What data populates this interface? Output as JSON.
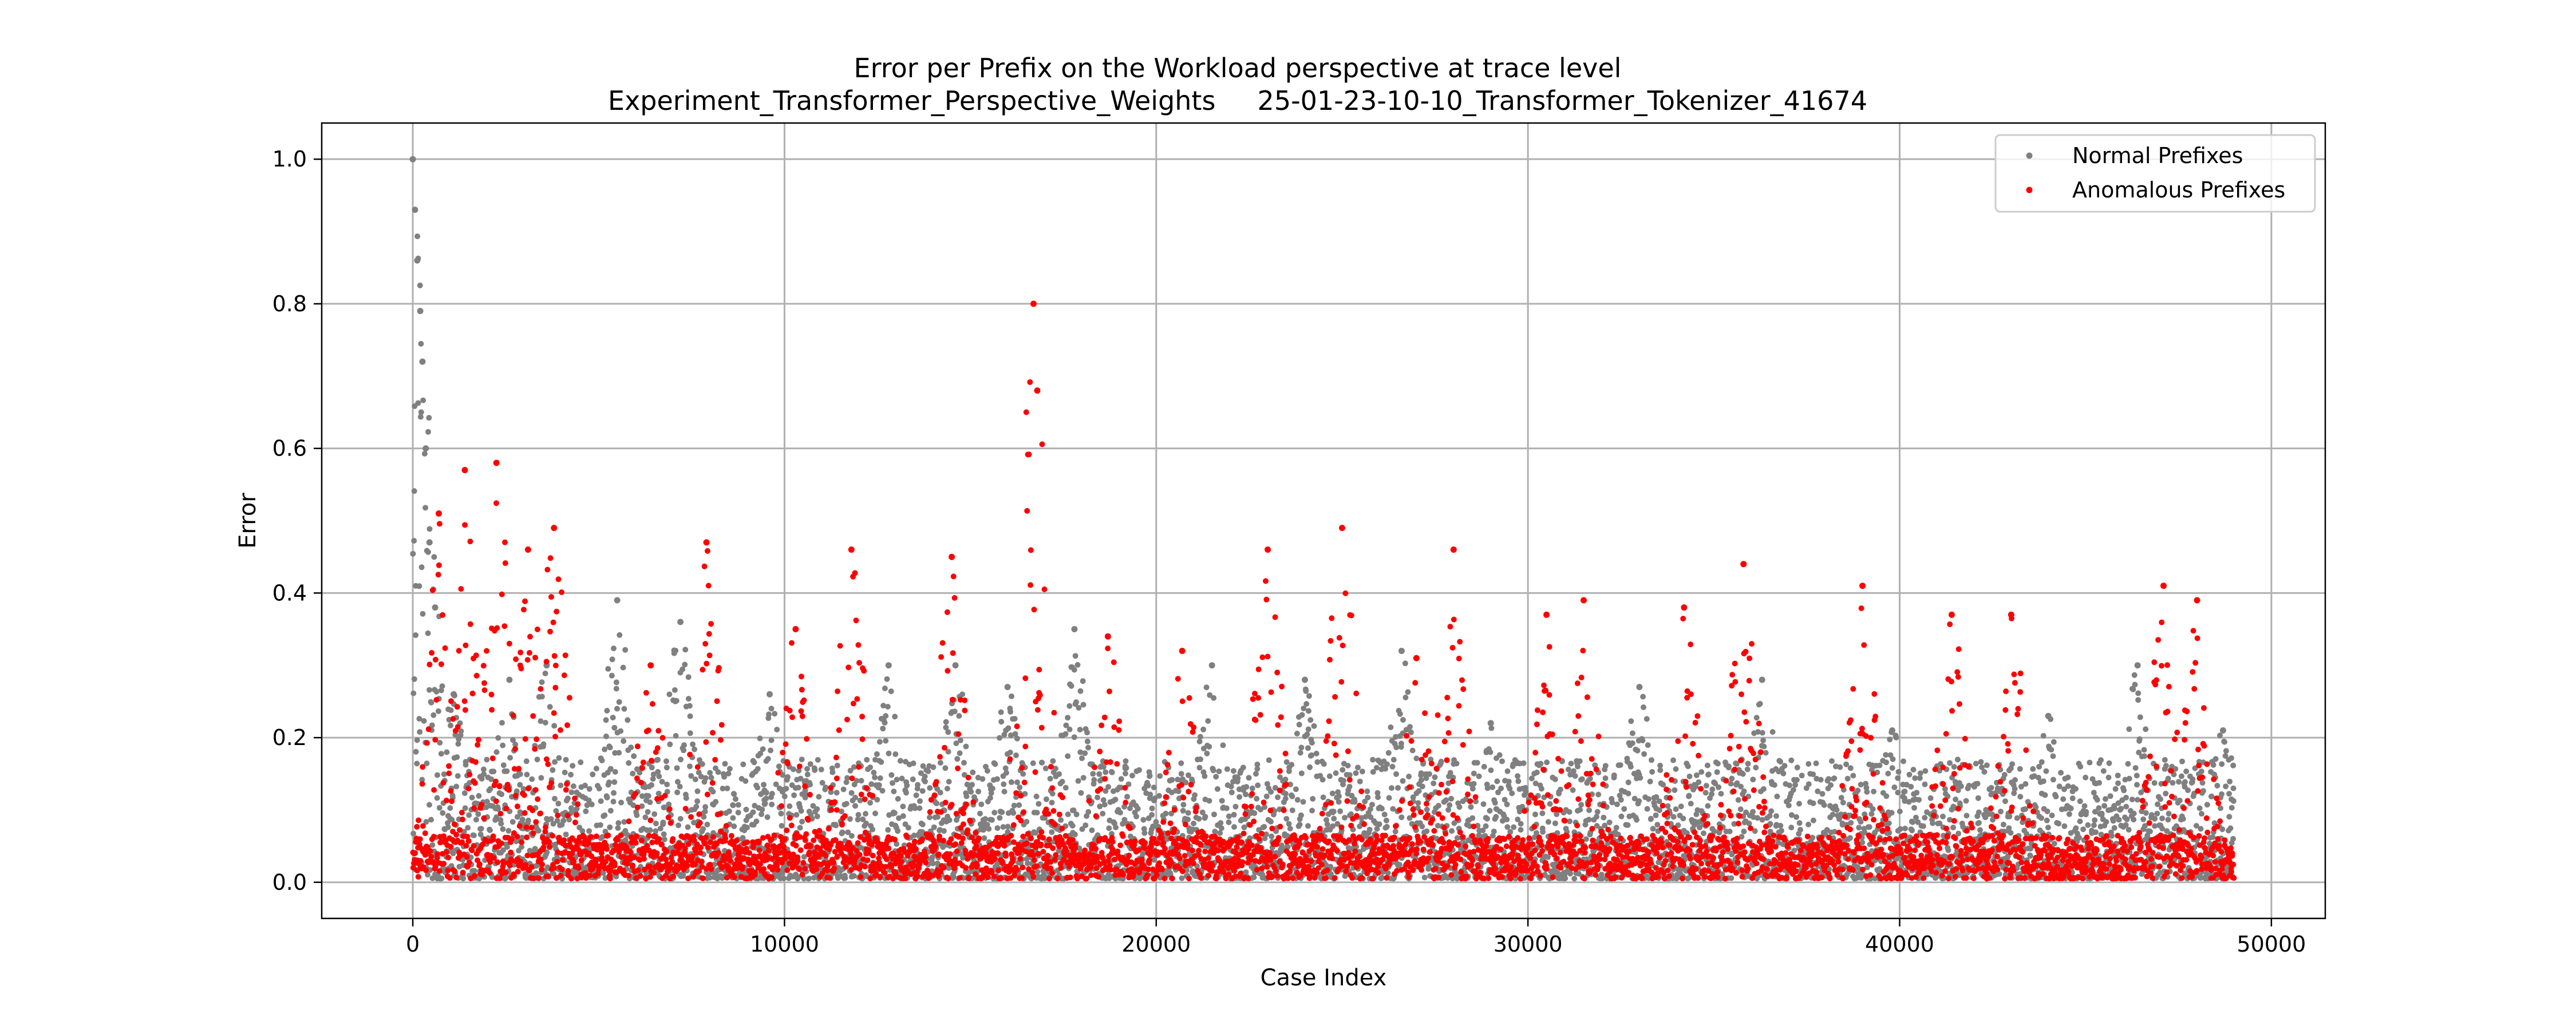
{
  "chart_data": {
    "type": "scatter",
    "title_lines": [
      "Error per Prefix on the Workload perspective at trace level",
      "Experiment_Transformer_Perspective_Weights     25-01-23-10-10_Transformer_Tokenizer_41674"
    ],
    "xlabel": "Case Index",
    "ylabel": "Error",
    "xlim": [
      -2450,
      51450
    ],
    "ylim": [
      -0.05,
      1.05
    ],
    "x_ticks": [
      0,
      10000,
      20000,
      30000,
      40000,
      50000
    ],
    "x_tick_labels": [
      "0",
      "10000",
      "20000",
      "30000",
      "40000",
      "50000"
    ],
    "y_ticks": [
      0.0,
      0.2,
      0.4,
      0.6,
      0.8,
      1.0
    ],
    "y_tick_labels": [
      "0.0",
      "0.2",
      "0.4",
      "0.6",
      "0.8",
      "1.0"
    ],
    "grid": true,
    "legend_position": "top-right",
    "x_range_of_data": [
      0,
      49000
    ],
    "series": [
      {
        "name": "Normal Prefixes",
        "color": "#808080",
        "peaks": [
          [
            0,
            1.0
          ],
          [
            60,
            0.93
          ],
          [
            120,
            0.86
          ],
          [
            200,
            0.79
          ],
          [
            260,
            0.72
          ],
          [
            350,
            0.6
          ],
          [
            450,
            0.47
          ],
          [
            600,
            0.38
          ],
          [
            1100,
            0.26
          ],
          [
            2600,
            0.28
          ],
          [
            3600,
            0.3
          ],
          [
            5500,
            0.39
          ],
          [
            7200,
            0.36
          ],
          [
            9600,
            0.26
          ],
          [
            12800,
            0.3
          ],
          [
            14600,
            0.3
          ],
          [
            16000,
            0.27
          ],
          [
            17800,
            0.35
          ],
          [
            21500,
            0.3
          ],
          [
            24000,
            0.28
          ],
          [
            26600,
            0.32
          ],
          [
            29000,
            0.22
          ],
          [
            33000,
            0.27
          ],
          [
            36300,
            0.28
          ],
          [
            39800,
            0.21
          ],
          [
            44000,
            0.23
          ],
          [
            46400,
            0.3
          ],
          [
            48700,
            0.21
          ]
        ]
      },
      {
        "name": "Anomalous Prefixes",
        "color": "#ff0000",
        "peaks": [
          [
            700,
            0.51
          ],
          [
            1400,
            0.57
          ],
          [
            2250,
            0.58
          ],
          [
            3100,
            0.46
          ],
          [
            3800,
            0.49
          ],
          [
            6400,
            0.3
          ],
          [
            7900,
            0.47
          ],
          [
            10300,
            0.35
          ],
          [
            11800,
            0.46
          ],
          [
            14500,
            0.45
          ],
          [
            16700,
            0.8
          ],
          [
            16800,
            0.68
          ],
          [
            18700,
            0.34
          ],
          [
            20700,
            0.32
          ],
          [
            23000,
            0.46
          ],
          [
            25000,
            0.49
          ],
          [
            27000,
            0.31
          ],
          [
            28000,
            0.46
          ],
          [
            30500,
            0.37
          ],
          [
            31500,
            0.39
          ],
          [
            34200,
            0.38
          ],
          [
            35800,
            0.44
          ],
          [
            39000,
            0.41
          ],
          [
            41400,
            0.37
          ],
          [
            43000,
            0.37
          ],
          [
            47100,
            0.41
          ],
          [
            48000,
            0.39
          ]
        ]
      }
    ]
  }
}
